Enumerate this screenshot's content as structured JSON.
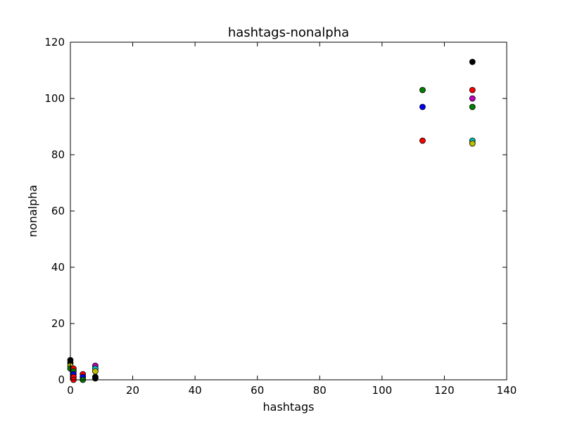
{
  "chart_data": {
    "type": "scatter",
    "title": "hashtags-nonalpha",
    "xlabel": "hashtags",
    "ylabel": "nonalpha",
    "xlim": [
      0,
      140
    ],
    "ylim": [
      0,
      120
    ],
    "xticks": [
      0,
      20,
      40,
      60,
      80,
      100,
      120,
      140
    ],
    "yticks": [
      0,
      20,
      40,
      60,
      80,
      100,
      120
    ],
    "xtick_labels": [
      "0",
      "20",
      "40",
      "60",
      "80",
      "100",
      "120",
      "140"
    ],
    "ytick_labels": [
      "0",
      "20",
      "40",
      "60",
      "80",
      "100",
      "120"
    ],
    "grid": false,
    "points": [
      {
        "x": 0,
        "y": 7,
        "color": "#000000"
      },
      {
        "x": 0,
        "y": 6,
        "color": "#000000"
      },
      {
        "x": 0,
        "y": 5,
        "color": "#bfbf00"
      },
      {
        "x": 0,
        "y": 4,
        "color": "#008000"
      },
      {
        "x": 1,
        "y": 4,
        "color": "#ff0000"
      },
      {
        "x": 1,
        "y": 3,
        "color": "#008000"
      },
      {
        "x": 1,
        "y": 2,
        "color": "#0000ff"
      },
      {
        "x": 1,
        "y": 1,
        "color": "#ff0000"
      },
      {
        "x": 1,
        "y": 0,
        "color": "#ff0000"
      },
      {
        "x": 4,
        "y": 2,
        "color": "#ff0000"
      },
      {
        "x": 4,
        "y": 1,
        "color": "#0000ff"
      },
      {
        "x": 4,
        "y": 0,
        "color": "#008000"
      },
      {
        "x": 8,
        "y": 5,
        "color": "#bf00bf"
      },
      {
        "x": 8,
        "y": 4,
        "color": "#00bfbf"
      },
      {
        "x": 8,
        "y": 3,
        "color": "#bfbf00"
      },
      {
        "x": 8,
        "y": 1,
        "color": "#000000"
      },
      {
        "x": 8,
        "y": 0.5,
        "color": "#000000"
      },
      {
        "x": 113,
        "y": 103,
        "color": "#008000"
      },
      {
        "x": 113,
        "y": 97,
        "color": "#0000ff"
      },
      {
        "x": 113,
        "y": 85,
        "color": "#ff0000"
      },
      {
        "x": 129,
        "y": 113,
        "color": "#000000"
      },
      {
        "x": 129,
        "y": 103,
        "color": "#ff0000"
      },
      {
        "x": 129,
        "y": 100,
        "color": "#bf00bf"
      },
      {
        "x": 129,
        "y": 97,
        "color": "#008000"
      },
      {
        "x": 129,
        "y": 85,
        "color": "#00bfbf"
      },
      {
        "x": 129,
        "y": 84,
        "color": "#bfbf00"
      }
    ]
  }
}
